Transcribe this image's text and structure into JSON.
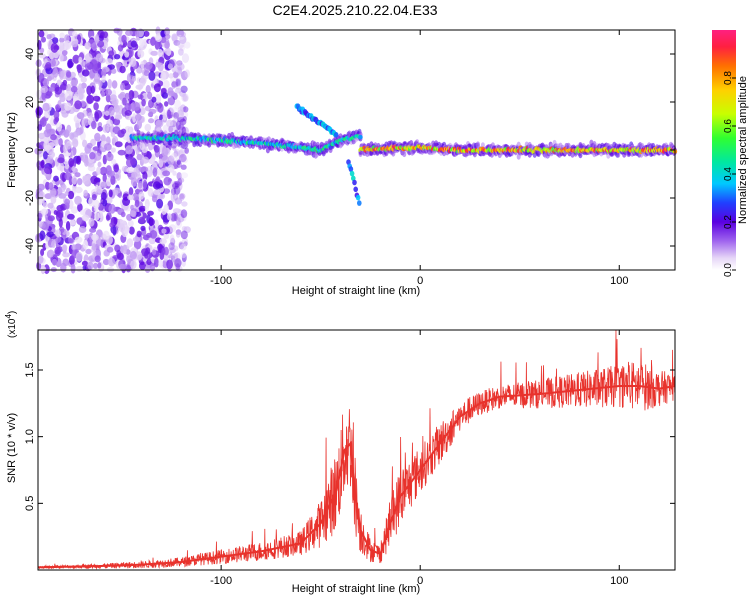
{
  "title": "C2E4.2025.210.22.04.E33",
  "chart_data": [
    {
      "type": "heatmap",
      "xlabel": "Height of straight line (km)",
      "ylabel": "Frequency (Hz)",
      "xlim": [
        -192,
        128
      ],
      "ylim": [
        -50,
        50
      ],
      "xticks": [
        -100,
        0,
        100
      ],
      "yticks": [
        -40,
        -20,
        0,
        20,
        40
      ],
      "colorbar": {
        "label": "Normalized spectral amplitude",
        "range": [
          0,
          1
        ],
        "ticks": [
          0,
          0.2,
          0.4,
          0.6,
          0.8
        ],
        "tick_labels": [
          "0.0",
          "0.2",
          "0.4",
          "0.6",
          "0.8"
        ]
      },
      "noise_region": {
        "x_range": [
          -192,
          -125
        ],
        "dominant_color": "#7b00e6"
      },
      "ridge_segments": [
        {
          "x": [
            -145,
            -120,
            -100,
            -80,
            -60,
            -50,
            -40,
            -30
          ],
          "freq": [
            5,
            5,
            4,
            3,
            1,
            0,
            4,
            6
          ],
          "amplitude": 0.45
        },
        {
          "x": [
            -30,
            -10,
            0,
            20,
            40,
            60,
            80,
            100,
            128
          ],
          "freq": [
            0,
            1,
            1,
            0,
            0,
            0,
            0,
            0,
            0
          ],
          "amplitude": 0.9
        }
      ],
      "features": [
        {
          "x": [
            -62,
            -55,
            -48,
            -42
          ],
          "freq": [
            18,
            14,
            10,
            6
          ],
          "amplitude": 0.3
        },
        {
          "x": [
            -36,
            -34,
            -32,
            -30
          ],
          "freq": [
            -5,
            -10,
            -18,
            -24
          ],
          "amplitude": 0.4
        }
      ]
    },
    {
      "type": "line",
      "xlabel": "Height of straight line (km)",
      "ylabel": "SNR (10 * v/v)",
      "exponent_label": "(x10",
      "exponent_power": "4",
      "exponent_close": ")",
      "xlim": [
        -192,
        128
      ],
      "ylim": [
        0,
        1.8
      ],
      "xticks": [
        -100,
        0,
        100
      ],
      "yticks": [
        0.5,
        1.0,
        1.5
      ],
      "ytick_labels": [
        "0.5",
        "1.0",
        "1.5"
      ],
      "color": "#e8322c",
      "x": [
        -192,
        -160,
        -140,
        -120,
        -100,
        -80,
        -60,
        -50,
        -42,
        -38,
        -35,
        -33,
        -30,
        -25,
        -20,
        -15,
        -10,
        -5,
        0,
        5,
        10,
        15,
        20,
        30,
        40,
        60,
        80,
        100,
        110,
        120,
        128
      ],
      "y": [
        0.02,
        0.03,
        0.04,
        0.06,
        0.1,
        0.14,
        0.2,
        0.35,
        0.6,
        0.9,
        0.95,
        0.6,
        0.3,
        0.15,
        0.12,
        0.35,
        0.55,
        0.65,
        0.75,
        0.85,
        0.95,
        1.05,
        1.15,
        1.25,
        1.3,
        1.32,
        1.35,
        1.38,
        1.38,
        1.36,
        1.38
      ],
      "noise": [
        0.01,
        0.02,
        0.03,
        0.04,
        0.06,
        0.08,
        0.1,
        0.2,
        0.35,
        0.4,
        0.4,
        0.35,
        0.2,
        0.1,
        0.08,
        0.2,
        0.25,
        0.22,
        0.2,
        0.18,
        0.18,
        0.15,
        0.12,
        0.1,
        0.1,
        0.12,
        0.15,
        0.18,
        0.22,
        0.15,
        0.12
      ]
    }
  ]
}
